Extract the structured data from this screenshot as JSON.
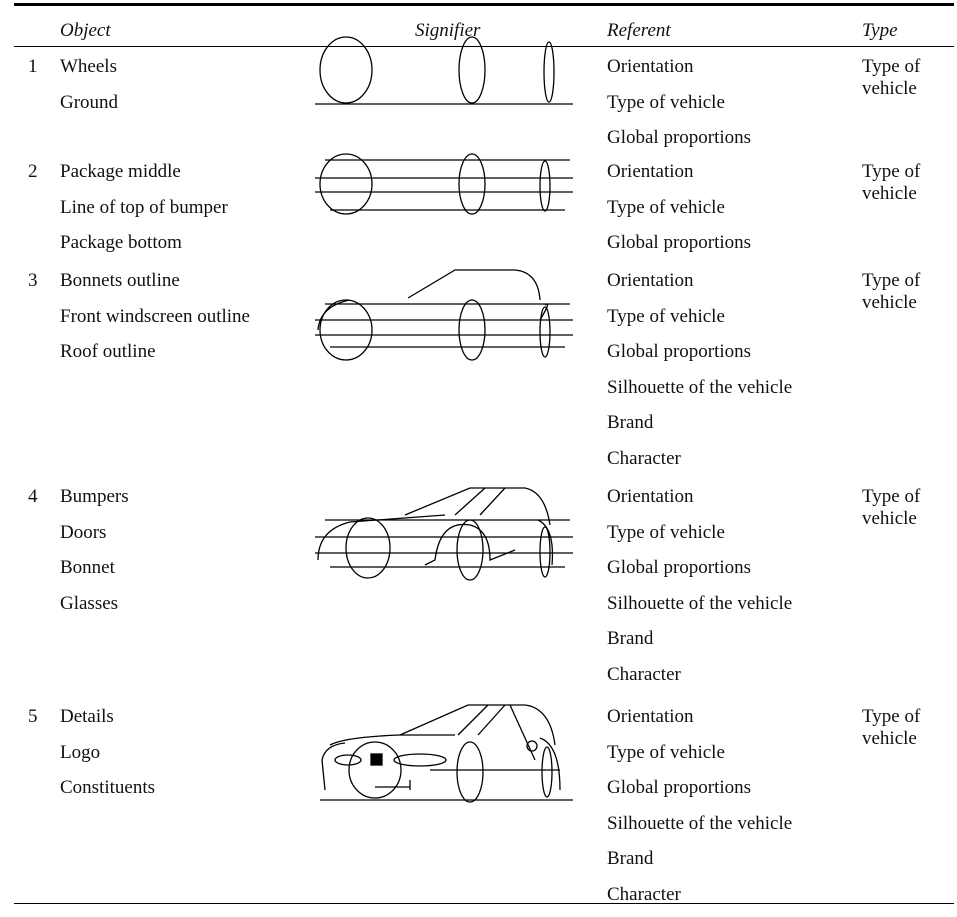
{
  "header": {
    "object": "Object",
    "signifier": "Signifier",
    "referent": "Referent",
    "type": "Type"
  },
  "rows": [
    {
      "number": "1",
      "objects": [
        "Wheels",
        "Ground"
      ],
      "referents": [
        "Orientation",
        "Type of vehicle",
        "Global proportions"
      ],
      "type": "Type of vehicle"
    },
    {
      "number": "2",
      "objects": [
        "Package middle",
        "Line of top of bumper",
        "Package bottom"
      ],
      "referents": [
        "Orientation",
        "Type of vehicle",
        "Global proportions"
      ],
      "type": "Type of vehicle"
    },
    {
      "number": "3",
      "objects": [
        "Bonnets outline",
        "Front windscreen outline",
        "Roof outline"
      ],
      "referents": [
        "Orientation",
        "Type of vehicle",
        "Global proportions",
        "Silhouette of the vehicle",
        "Brand",
        "Character"
      ],
      "type": "Type of vehicle"
    },
    {
      "number": "4",
      "objects": [
        "Bumpers",
        "Doors",
        "Bonnet",
        "Glasses"
      ],
      "referents": [
        "Orientation",
        "Type of vehicle",
        "Global proportions",
        "Silhouette of the vehicle",
        "Brand",
        "Character"
      ],
      "type": "Type of vehicle"
    },
    {
      "number": "5",
      "objects": [
        "Details",
        "Logo",
        "Constituents"
      ],
      "referents": [
        "Orientation",
        "Type of vehicle",
        "Global proportions",
        "Silhouette of the vehicle",
        "Brand",
        "Character"
      ],
      "type": "Type of vehicle"
    }
  ]
}
